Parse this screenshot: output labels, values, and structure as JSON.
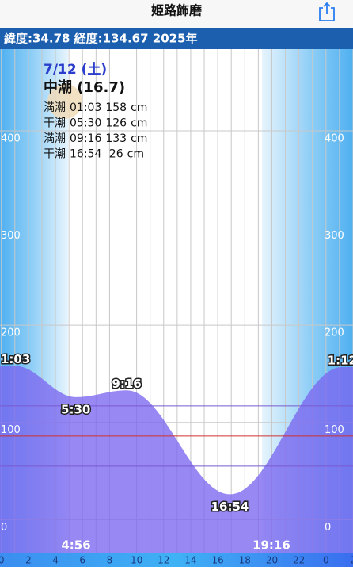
{
  "header": {
    "title": "姫路飾磨",
    "location": "緯度:34.78 経度:134.67 2025年"
  },
  "info": {
    "date": "7/12 (土)",
    "tide_name": "中潮 (16.7)",
    "tides": [
      {
        "type": "満潮",
        "time": "01:03",
        "height": 158,
        "unit": "cm"
      },
      {
        "type": "干潮",
        "time": "05:30",
        "height": 126,
        "unit": "cm"
      },
      {
        "type": "満潮",
        "time": "09:16",
        "height": 133,
        "unit": "cm"
      },
      {
        "type": "干潮",
        "time": "16:54",
        "height": " 26",
        "unit": "cm"
      }
    ]
  },
  "chart_data": {
    "type": "area",
    "x": [
      1.05,
      5.5,
      9.267,
      16.9,
      25.2
    ],
    "values": [
      158,
      126,
      133,
      26,
      157
    ],
    "value_labels": [
      "1:03",
      "5:30",
      "9:16",
      "16:54",
      "1:12"
    ],
    "color": "#7b66f0",
    "xlim": [
      -0.1,
      26
    ],
    "ylim": [
      -34,
      484
    ],
    "xticks": [
      0,
      2,
      4,
      6,
      8,
      10,
      12,
      14,
      16,
      18,
      20,
      22,
      {
        "value": 24,
        "label": "0"
      },
      {
        "value": 26,
        "label": "2"
      }
    ],
    "yticks": [
      0,
      100,
      200,
      300,
      400
    ],
    "grid": true,
    "sunrise": {
      "x": 4.933,
      "label": "4:56"
    },
    "sunset": {
      "x": 19.267,
      "label": "19:16"
    },
    "hlines": [
      {
        "value": 117,
        "color": "#7a5ad0"
      },
      {
        "value": 86,
        "color": "#d03030"
      },
      {
        "value": 55,
        "color": "#7a5ad0"
      }
    ]
  }
}
